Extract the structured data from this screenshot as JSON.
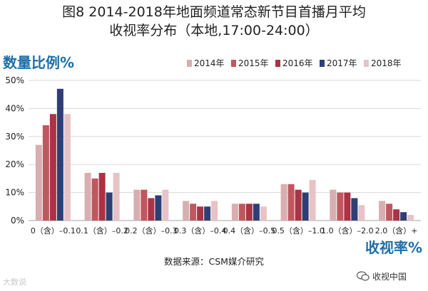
{
  "title_line1": "图8  2014-2018年地面频道常态新节目首播月平均",
  "title_line2": "收视率分布（本地,17:00-24:00）",
  "source": "数据来源：CSM媒介研究",
  "watermark_left": "大数说",
  "watermark_right": "收视中国",
  "chart_data": {
    "type": "bar",
    "ylabel": "数量比例%",
    "xlabel": "收视率%",
    "ylim": [
      0,
      50
    ],
    "yticks": [
      "0%",
      "10%",
      "20%",
      "30%",
      "40%",
      "50%"
    ],
    "grid": true,
    "legend_position": "top-right",
    "categories": [
      "0（含）–0.1",
      "0.1（含）–0.2",
      "0.2（含）–0.3",
      "0.3（含）–0.4",
      "0.4（含）–0.5",
      "0.5（含）–1.0",
      "1.0（含）–2.0",
      "2.0（含）+"
    ],
    "series": [
      {
        "name": "2014年",
        "color": "#d8aeb0",
        "values": [
          27,
          17,
          11,
          7,
          6,
          13,
          11,
          7
        ]
      },
      {
        "name": "2015年",
        "color": "#c0575f",
        "values": [
          34,
          15,
          11,
          6,
          6,
          13,
          10,
          6
        ]
      },
      {
        "name": "2016年",
        "color": "#a83445",
        "values": [
          38,
          17,
          8,
          5,
          6,
          11,
          10,
          4
        ]
      },
      {
        "name": "2017年",
        "color": "#2f3f75",
        "values": [
          47,
          10,
          9,
          5,
          6,
          10,
          8,
          3
        ]
      },
      {
        "name": "2018年",
        "color": "#e6c3c6",
        "values": [
          38,
          17,
          11,
          7,
          5,
          14.5,
          5.5,
          2
        ]
      }
    ]
  }
}
